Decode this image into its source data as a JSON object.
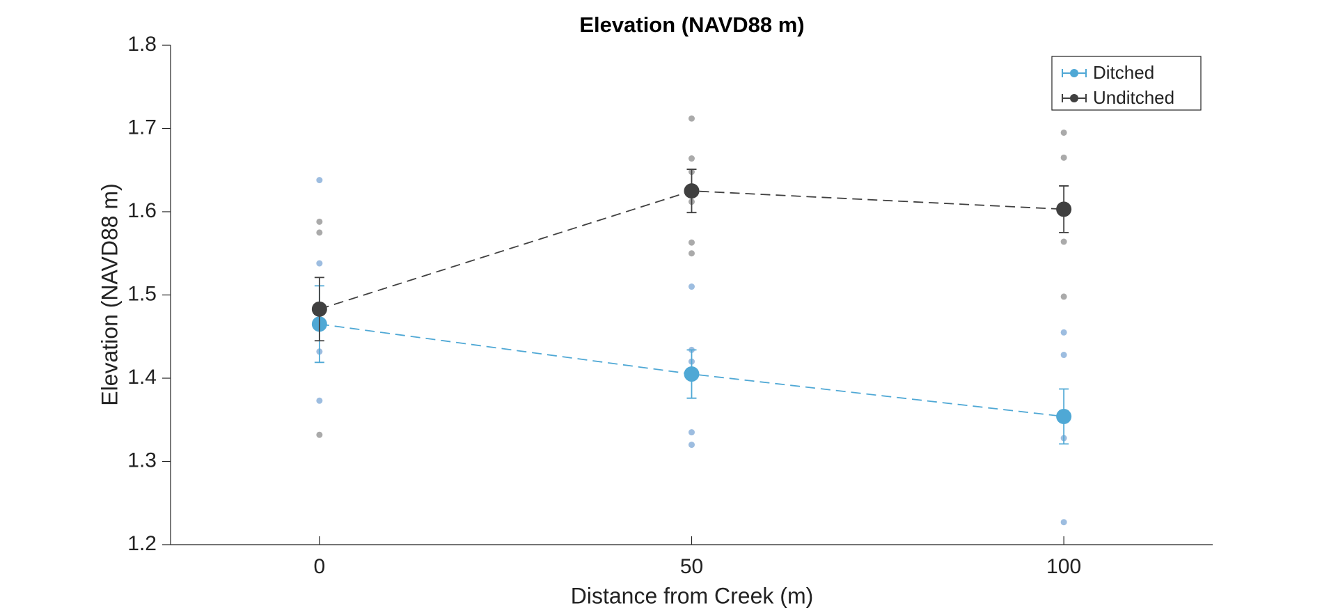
{
  "chart_data": {
    "type": "errorbar-line",
    "title": "Elevation (NAVD88 m)",
    "x_label": "Distance from Creek (m)",
    "y_label": "Elevation (NAVD88 m)",
    "xlim": [
      -20,
      120
    ],
    "xticks": [
      0,
      50,
      100
    ],
    "ylim": [
      1.2,
      1.8
    ],
    "yticks": [
      1.2,
      1.3,
      1.4,
      1.5,
      1.6,
      1.7,
      1.8
    ],
    "legend": "upper right",
    "series": [
      {
        "name": "Ditched",
        "color": "#4fa8d5",
        "point_color": "#9dbde0",
        "x": [
          0,
          50,
          100
        ],
        "values": [
          1.465,
          1.405,
          1.354
        ],
        "errors": [
          0.046,
          0.029,
          0.033
        ],
        "points_x": [
          0,
          0,
          0,
          0,
          50,
          50,
          50,
          50,
          50,
          100,
          100,
          100,
          100
        ],
        "points_values": [
          1.638,
          1.538,
          1.432,
          1.373,
          1.51,
          1.434,
          1.42,
          1.335,
          1.32,
          1.455,
          1.428,
          1.328,
          1.227
        ]
      },
      {
        "name": "Unditched",
        "color": "#404040",
        "point_color": "#aaaaaa",
        "x": [
          0,
          50,
          100
        ],
        "values": [
          1.483,
          1.625,
          1.603
        ],
        "errors": [
          0.038,
          0.026,
          0.028
        ],
        "points_x": [
          0,
          0,
          0,
          50,
          50,
          50,
          50,
          50,
          50,
          100,
          100,
          100,
          100
        ],
        "points_values": [
          1.588,
          1.575,
          1.332,
          1.712,
          1.664,
          1.648,
          1.612,
          1.563,
          1.55,
          1.695,
          1.665,
          1.564,
          1.498
        ]
      }
    ]
  }
}
